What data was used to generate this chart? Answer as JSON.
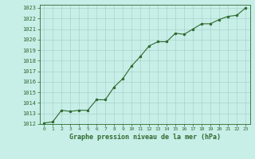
{
  "x": [
    0,
    1,
    2,
    3,
    4,
    5,
    6,
    7,
    8,
    9,
    10,
    11,
    12,
    13,
    14,
    15,
    16,
    17,
    18,
    19,
    20,
    21,
    22,
    23
  ],
  "y": [
    1012.1,
    1012.2,
    1013.3,
    1013.2,
    1013.3,
    1013.3,
    1014.3,
    1014.3,
    1015.5,
    1016.3,
    1017.5,
    1018.4,
    1019.4,
    1019.8,
    1019.8,
    1020.6,
    1020.5,
    1021.0,
    1021.5,
    1021.5,
    1021.9,
    1022.2,
    1022.3,
    1023.0
  ],
  "line_color": "#2d6a2d",
  "marker_color": "#2d6a2d",
  "bg_color": "#c8eee8",
  "grid_color": "#9ecec4",
  "xlabel": "Graphe pression niveau de la mer (hPa)",
  "xlabel_color": "#2d6a2d",
  "tick_color": "#2d6a2d",
  "ylim_min": 1012,
  "ylim_max": 1023,
  "ytick_step": 1,
  "xtick_labels": [
    "0",
    "1",
    "2",
    "3",
    "4",
    "5",
    "6",
    "7",
    "8",
    "9",
    "10",
    "11",
    "12",
    "13",
    "14",
    "15",
    "16",
    "17",
    "18",
    "19",
    "20",
    "21",
    "22",
    "23"
  ]
}
